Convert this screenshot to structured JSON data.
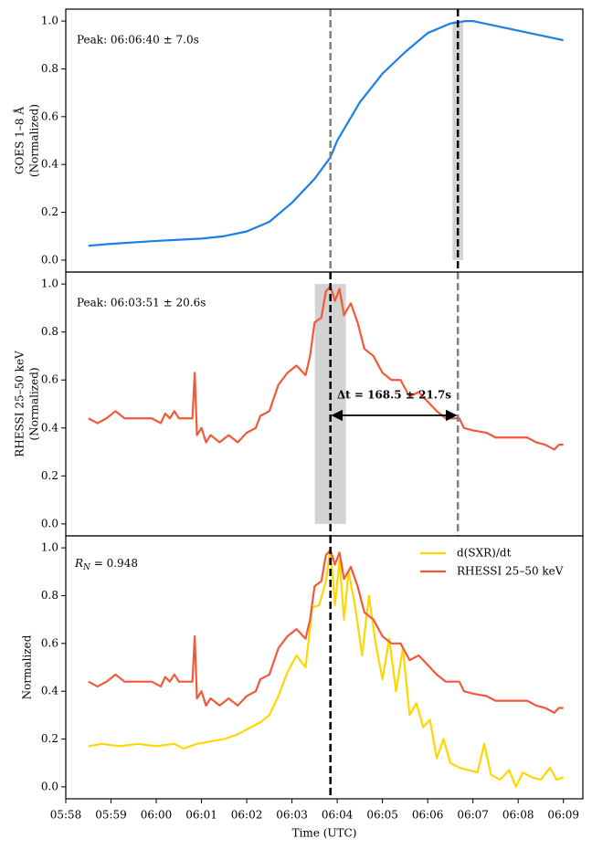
{
  "chart_data": [
    {
      "type": "line",
      "ylabel": [
        "GOES 1–8 Å",
        "(Normalized)"
      ],
      "annotation": "Peak: 06:06:40 ± 7.0s",
      "ylim": [
        -0.05,
        1.05
      ],
      "yticks": [
        {
          "value": 0,
          "label": "0.0"
        },
        0.2,
        0.4,
        0.6,
        0.8,
        {
          "value": 1,
          "label": "1.0"
        }
      ],
      "span": {
        "x": 366.667,
        "err": 0.117
      },
      "vlines": [
        {
          "x": 363.85,
          "color": "#808080"
        },
        {
          "x": 366.667,
          "color": "#000000"
        }
      ],
      "series": [
        {
          "color": "#1a7fe8",
          "x": [
            358.5,
            359,
            360,
            360.5,
            361,
            361.5,
            362,
            362.5,
            363,
            363.5,
            363.85,
            364,
            364.5,
            365,
            365.5,
            366,
            366.5,
            366.83,
            367,
            367.5,
            368,
            368.5,
            369
          ],
          "values": [
            0.06,
            0.068,
            0.08,
            0.085,
            0.09,
            0.1,
            0.12,
            0.16,
            0.24,
            0.34,
            0.43,
            0.5,
            0.66,
            0.78,
            0.87,
            0.95,
            0.99,
            1.0,
            1.0,
            0.98,
            0.96,
            0.94,
            0.92
          ]
        }
      ]
    },
    {
      "type": "line",
      "ylabel": [
        "RHESSI 25–50 keV",
        "(Normalized)"
      ],
      "annotation": "Peak: 06:03:51 ± 20.6s",
      "delta": "Δt = 168.5 ± 21.7s",
      "ylim": [
        -0.05,
        1.05
      ],
      "yticks": [
        {
          "value": 0,
          "label": "0.0"
        },
        0.2,
        0.4,
        0.6,
        0.8,
        {
          "value": 1,
          "label": "1.0"
        }
      ],
      "span": {
        "x": 363.85,
        "err": 0.343
      },
      "vlines": [
        {
          "x": 363.85,
          "color": "#000000"
        },
        {
          "x": 366.667,
          "color": "#808080"
        }
      ],
      "series": [
        {
          "color": "#f05a3a",
          "x": [
            358.5,
            358.7,
            358.9,
            359.1,
            359.3,
            359.5,
            359.9,
            360.1,
            360.2,
            360.3,
            360.4,
            360.5,
            360.8,
            360.85,
            360.9,
            361.0,
            361.1,
            361.2,
            361.4,
            361.6,
            361.8,
            362.0,
            362.2,
            362.3,
            362.5,
            362.7,
            362.9,
            363.1,
            363.3,
            363.4,
            363.5,
            363.65,
            363.75,
            363.85,
            363.95,
            364.05,
            364.15,
            364.3,
            364.45,
            364.6,
            364.8,
            365.0,
            365.2,
            365.4,
            365.6,
            365.8,
            366.0,
            366.2,
            366.4,
            366.7,
            366.8,
            367.0,
            367.3,
            367.5,
            368.2,
            368.4,
            368.6,
            368.8,
            368.9,
            369.0
          ],
          "values": [
            0.44,
            0.42,
            0.44,
            0.47,
            0.44,
            0.44,
            0.44,
            0.42,
            0.46,
            0.44,
            0.47,
            0.44,
            0.44,
            0.63,
            0.37,
            0.4,
            0.34,
            0.37,
            0.34,
            0.37,
            0.34,
            0.38,
            0.4,
            0.45,
            0.47,
            0.58,
            0.63,
            0.66,
            0.62,
            0.7,
            0.84,
            0.86,
            0.97,
            0.99,
            0.93,
            0.98,
            0.87,
            0.92,
            0.84,
            0.73,
            0.7,
            0.63,
            0.6,
            0.6,
            0.53,
            0.55,
            0.51,
            0.47,
            0.44,
            0.44,
            0.4,
            0.39,
            0.38,
            0.36,
            0.36,
            0.34,
            0.33,
            0.31,
            0.33,
            0.33
          ]
        }
      ]
    },
    {
      "type": "line",
      "ylabel": [
        "Normalized"
      ],
      "rn": {
        "symbol": "R",
        "subscript": "N",
        "text": " = 0.948"
      },
      "xlabel": "Time (UTC)",
      "xlim": [
        358,
        369.43
      ],
      "xticks": [
        {
          "value": 358,
          "label": "05:58"
        },
        {
          "value": 359,
          "label": "05:59"
        },
        {
          "value": 360,
          "label": "06:00"
        },
        {
          "value": 361,
          "label": "06:01"
        },
        {
          "value": 362,
          "label": "06:02"
        },
        {
          "value": 363,
          "label": "06:03"
        },
        {
          "value": 364,
          "label": "06:04"
        },
        {
          "value": 365,
          "label": "06:05"
        },
        {
          "value": 366,
          "label": "06:06"
        },
        {
          "value": 367,
          "label": "06:07"
        },
        {
          "value": 368,
          "label": "06:08"
        },
        {
          "value": 369,
          "label": "06:09"
        }
      ],
      "ylim": [
        -0.05,
        1.05
      ],
      "yticks": [
        {
          "value": 0,
          "label": "0.0"
        },
        0.2,
        0.4,
        0.6,
        0.8,
        {
          "value": 1,
          "label": "1.0"
        }
      ],
      "vlines": [
        {
          "x": 363.85,
          "color": "#000000"
        }
      ],
      "legend": "upper right",
      "series": [
        {
          "name": "d(SXR)/dt",
          "color": "#ffd700",
          "x": [
            358.5,
            358.8,
            359.2,
            359.6,
            360.0,
            360.4,
            360.6,
            360.9,
            361.2,
            361.5,
            361.8,
            362.0,
            362.3,
            362.5,
            362.7,
            362.9,
            363.1,
            363.3,
            363.45,
            363.6,
            363.75,
            363.85,
            363.95,
            364.05,
            364.15,
            364.25,
            364.4,
            364.55,
            364.7,
            364.85,
            365.0,
            365.15,
            365.3,
            365.45,
            365.6,
            365.75,
            365.9,
            366.05,
            366.2,
            366.35,
            366.5,
            366.7,
            366.9,
            367.1,
            367.25,
            367.4,
            367.6,
            367.8,
            367.95,
            368.1,
            368.3,
            368.5,
            368.7,
            368.85,
            369.0
          ],
          "values": [
            0.17,
            0.18,
            0.17,
            0.18,
            0.17,
            0.18,
            0.16,
            0.18,
            0.19,
            0.2,
            0.22,
            0.24,
            0.27,
            0.3,
            0.38,
            0.48,
            0.55,
            0.5,
            0.75,
            0.76,
            0.86,
            1.0,
            0.76,
            0.95,
            0.7,
            0.9,
            0.75,
            0.55,
            0.8,
            0.6,
            0.45,
            0.62,
            0.4,
            0.58,
            0.3,
            0.35,
            0.25,
            0.28,
            0.12,
            0.2,
            0.1,
            0.08,
            0.07,
            0.06,
            0.18,
            0.05,
            0.03,
            0.07,
            0.0,
            0.06,
            0.04,
            0.03,
            0.08,
            0.03,
            0.04
          ]
        },
        {
          "name": "RHESSI 25–50 keV",
          "color": "#f05a3a",
          "x": [
            358.5,
            358.7,
            358.9,
            359.1,
            359.3,
            359.5,
            359.9,
            360.1,
            360.2,
            360.3,
            360.4,
            360.5,
            360.8,
            360.85,
            360.9,
            361.0,
            361.1,
            361.2,
            361.4,
            361.6,
            361.8,
            362.0,
            362.2,
            362.3,
            362.5,
            362.7,
            362.9,
            363.1,
            363.3,
            363.4,
            363.5,
            363.65,
            363.75,
            363.85,
            363.95,
            364.05,
            364.15,
            364.3,
            364.45,
            364.6,
            364.8,
            365.0,
            365.2,
            365.4,
            365.6,
            365.8,
            366.0,
            366.2,
            366.4,
            366.7,
            366.8,
            367.0,
            367.3,
            367.5,
            368.2,
            368.4,
            368.6,
            368.8,
            368.9,
            369.0
          ],
          "values": [
            0.44,
            0.42,
            0.44,
            0.47,
            0.44,
            0.44,
            0.44,
            0.42,
            0.46,
            0.44,
            0.47,
            0.44,
            0.44,
            0.63,
            0.37,
            0.4,
            0.34,
            0.37,
            0.34,
            0.37,
            0.34,
            0.38,
            0.4,
            0.45,
            0.47,
            0.58,
            0.63,
            0.66,
            0.62,
            0.7,
            0.84,
            0.86,
            0.97,
            0.99,
            0.93,
            0.98,
            0.87,
            0.92,
            0.84,
            0.73,
            0.7,
            0.63,
            0.6,
            0.6,
            0.53,
            0.55,
            0.51,
            0.47,
            0.44,
            0.44,
            0.4,
            0.39,
            0.38,
            0.36,
            0.36,
            0.34,
            0.33,
            0.31,
            0.33,
            0.33
          ]
        }
      ]
    }
  ]
}
